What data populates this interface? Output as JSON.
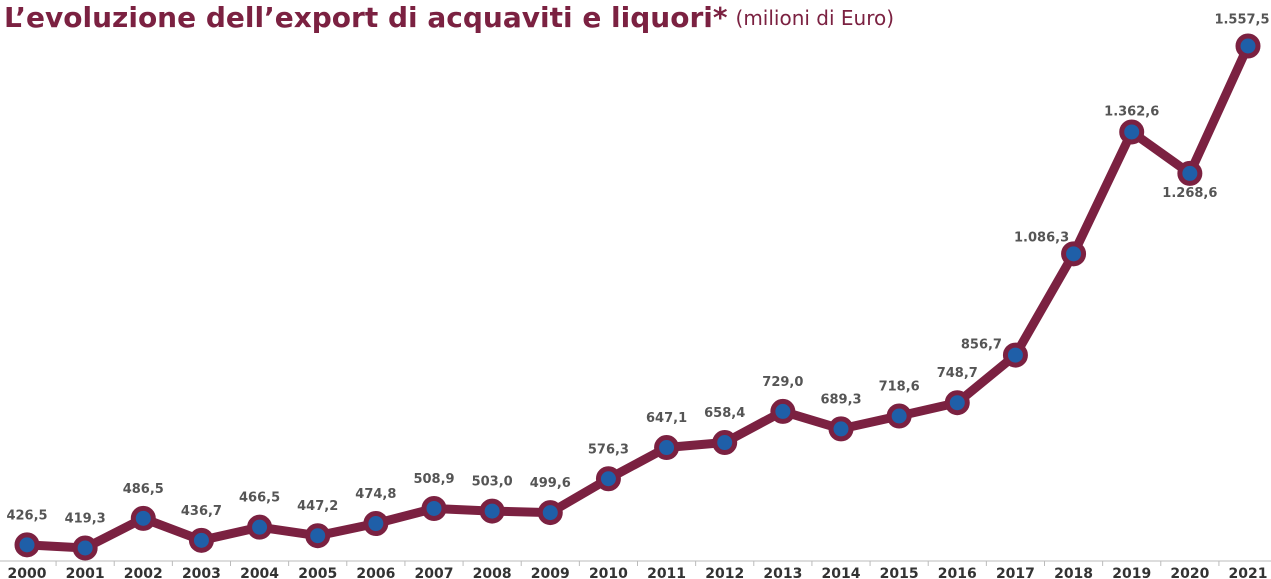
{
  "chart_data": {
    "type": "line",
    "title": "L’evoluzione dell’export di acquaviti e liquori*",
    "subtitle": "(milioni di Euro)",
    "categories": [
      "2000",
      "2001",
      "2002",
      "2003",
      "2004",
      "2005",
      "2006",
      "2007",
      "2008",
      "2009",
      "2010",
      "2011",
      "2012",
      "2013",
      "2014",
      "2015",
      "2016",
      "2017",
      "2018",
      "2019",
      "2020",
      "2021"
    ],
    "series": [
      {
        "name": "Export",
        "color": "#7b2141",
        "marker_color": "#1f5fa8",
        "values": [
          426.5,
          419.3,
          486.5,
          436.7,
          466.5,
          447.2,
          474.8,
          508.9,
          503.0,
          499.6,
          576.3,
          647.1,
          658.4,
          729.0,
          689.3,
          718.6,
          748.7,
          856.7,
          1086.3,
          1362.6,
          1268.6,
          1557.5
        ],
        "value_labels": [
          "426,5",
          "419,3",
          "486,5",
          "436,7",
          "466,5",
          "447,2",
          "474,8",
          "508,9",
          "503,0",
          "499,6",
          "576,3",
          "647,1",
          "658,4",
          "729,0",
          "689,3",
          "718,6",
          "748,7",
          "856,7",
          "1.086,3",
          "1.362,6",
          "1.268,6",
          "1.557,5"
        ]
      }
    ]
  }
}
